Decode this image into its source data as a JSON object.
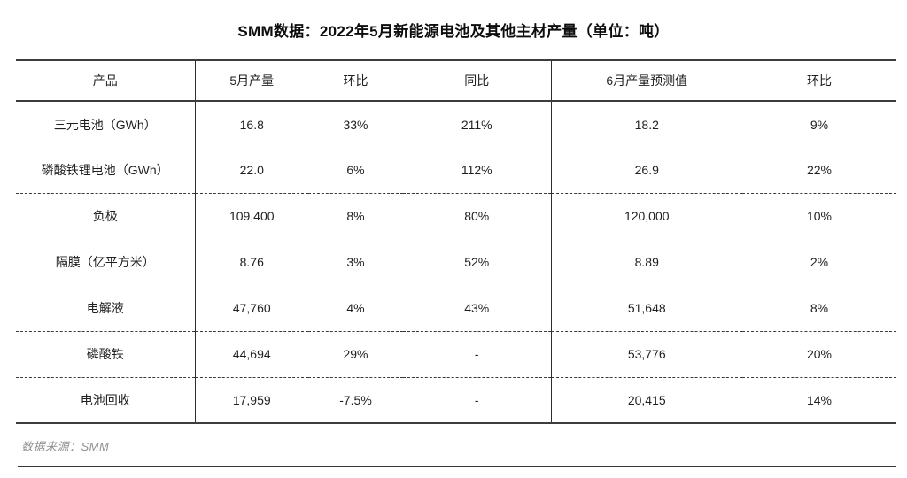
{
  "title": "SMM数据：2022年5月新能源电池及其他主材产量（单位：吨）",
  "source_note": "数据来源：SMM",
  "table": {
    "headers": [
      "产品",
      "5月产量",
      "环比",
      "同比",
      "6月产量预测值",
      "环比"
    ],
    "rows": [
      [
        "三元电池（GWh）",
        "16.8",
        "33%",
        "211%",
        "18.2",
        "9%"
      ],
      [
        "磷酸铁锂电池（GWh）",
        "22.0",
        "6%",
        "112%",
        "26.9",
        "22%"
      ],
      [
        "负极",
        "109,400",
        "8%",
        "80%",
        "120,000",
        "10%"
      ],
      [
        "隔膜（亿平方米）",
        "8.76",
        "3%",
        "52%",
        "8.89",
        "2%"
      ],
      [
        "电解液",
        "47,760",
        "4%",
        "43%",
        "51,648",
        "8%"
      ],
      [
        "磷酸铁",
        "44,694",
        "29%",
        "-",
        "53,776",
        "20%"
      ],
      [
        "电池回收",
        "17,959",
        "-7.5%",
        "-",
        "20,415",
        "14%"
      ]
    ]
  },
  "chart_data": {
    "type": "table",
    "title": "SMM数据：2022年5月新能源电池及其他主材产量（单位：吨）",
    "columns": [
      "产品",
      "5月产量",
      "环比",
      "同比",
      "6月产量预测值",
      "环比"
    ],
    "rows": [
      {
        "产品": "三元电池（GWh）",
        "5月产量": 16.8,
        "环比": "33%",
        "同比": "211%",
        "6月产量预测值": 18.2,
        "6月环比": "9%"
      },
      {
        "产品": "磷酸铁锂电池（GWh）",
        "5月产量": 22.0,
        "环比": "6%",
        "同比": "112%",
        "6月产量预测值": 26.9,
        "6月环比": "22%"
      },
      {
        "产品": "负极",
        "5月产量": 109400,
        "环比": "8%",
        "同比": "80%",
        "6月产量预测值": 120000,
        "6月环比": "10%"
      },
      {
        "产品": "隔膜（亿平方米）",
        "5月产量": 8.76,
        "环比": "3%",
        "同比": "52%",
        "6月产量预测值": 8.89,
        "6月环比": "2%"
      },
      {
        "产品": "电解液",
        "5月产量": 47760,
        "环比": "4%",
        "同比": "43%",
        "6月产量预测值": 51648,
        "6月环比": "8%"
      },
      {
        "产品": "磷酸铁",
        "5月产量": 44694,
        "环比": "29%",
        "同比": "-",
        "6月产量预测值": 53776,
        "6月环比": "20%"
      },
      {
        "产品": "电池回收",
        "5月产量": 17959,
        "环比": "-7.5%",
        "同比": "-",
        "6月产量预测值": 20415,
        "6月环比": "14%"
      }
    ],
    "source": "数据来源：SMM",
    "layout_hints": {
      "solid_borders": [
        "table-top",
        "header-bottom",
        "table-bottom"
      ],
      "dashed_separators_after_rows": [
        2,
        5,
        6
      ],
      "vertical_rules_after_columns": [
        "产品",
        "同比"
      ]
    }
  },
  "colors": {
    "line": "#3c3c3c",
    "text": "#1f1f1f",
    "title_text": "#0d0d0d",
    "muted_text": "#8f8f8f",
    "background": "#ffffff"
  }
}
